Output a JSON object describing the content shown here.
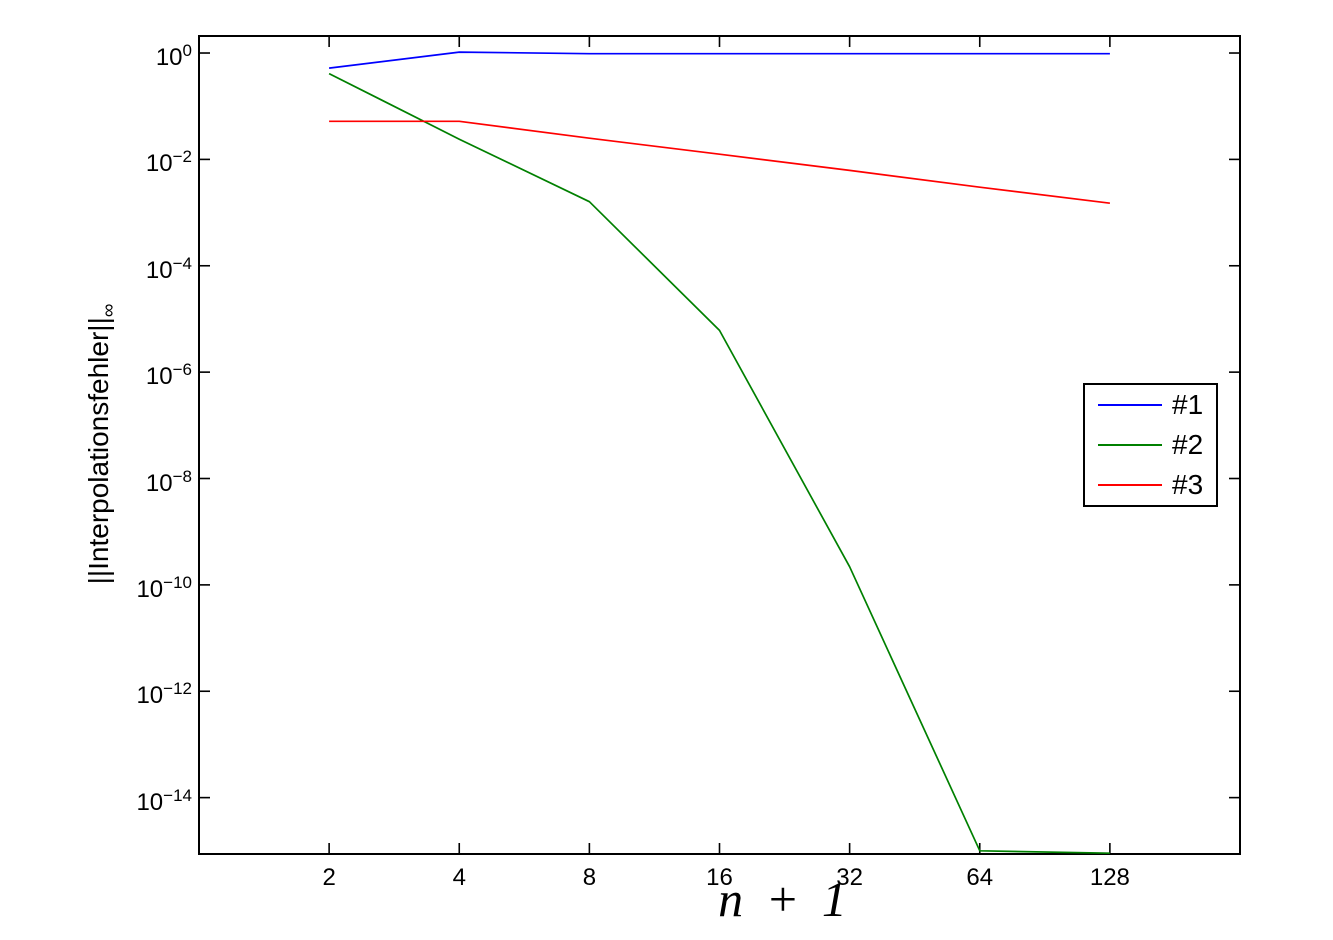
{
  "figure": {
    "background": "#ffffff",
    "axis_color": "#000000",
    "xlabel": "n + 1",
    "ylabel_main": "||Interpolationsfehler||",
    "ylabel_sub": "∞"
  },
  "chart_data": {
    "type": "line",
    "title": "",
    "xlabel": "n + 1",
    "ylabel": "||Interpolationsfehler||_inf",
    "x_scale": "log",
    "y_scale": "log",
    "grid": false,
    "xlim": [
      1,
      256
    ],
    "ylim_exponents": [
      -15.06,
      0.32
    ],
    "x": [
      2,
      4,
      8,
      16,
      32,
      64,
      128
    ],
    "x_tick_labels": [
      "2",
      "4",
      "8",
      "16",
      "32",
      "64",
      "128"
    ],
    "y_tick_base": "10",
    "y_tick_exponents": [
      "0",
      "−2",
      "−4",
      "−6",
      "−8",
      "−10",
      "−12",
      "−14"
    ],
    "series": [
      {
        "name": "#1",
        "color": "#0000ff",
        "values": [
          0.52,
          1.04,
          0.97,
          0.97,
          0.97,
          0.97,
          0.97
        ]
      },
      {
        "name": "#2",
        "color": "#008000",
        "values": [
          0.41,
          0.024,
          0.0016,
          6.1e-06,
          2.2e-10,
          1e-15,
          9e-16
        ]
      },
      {
        "name": "#3",
        "color": "#ff0000",
        "values": [
          0.052,
          0.052,
          0.025,
          0.0125,
          0.0062,
          0.003,
          0.0015
        ]
      }
    ],
    "legend": {
      "position": "east",
      "entries": [
        "#1",
        "#2",
        "#3"
      ]
    }
  }
}
